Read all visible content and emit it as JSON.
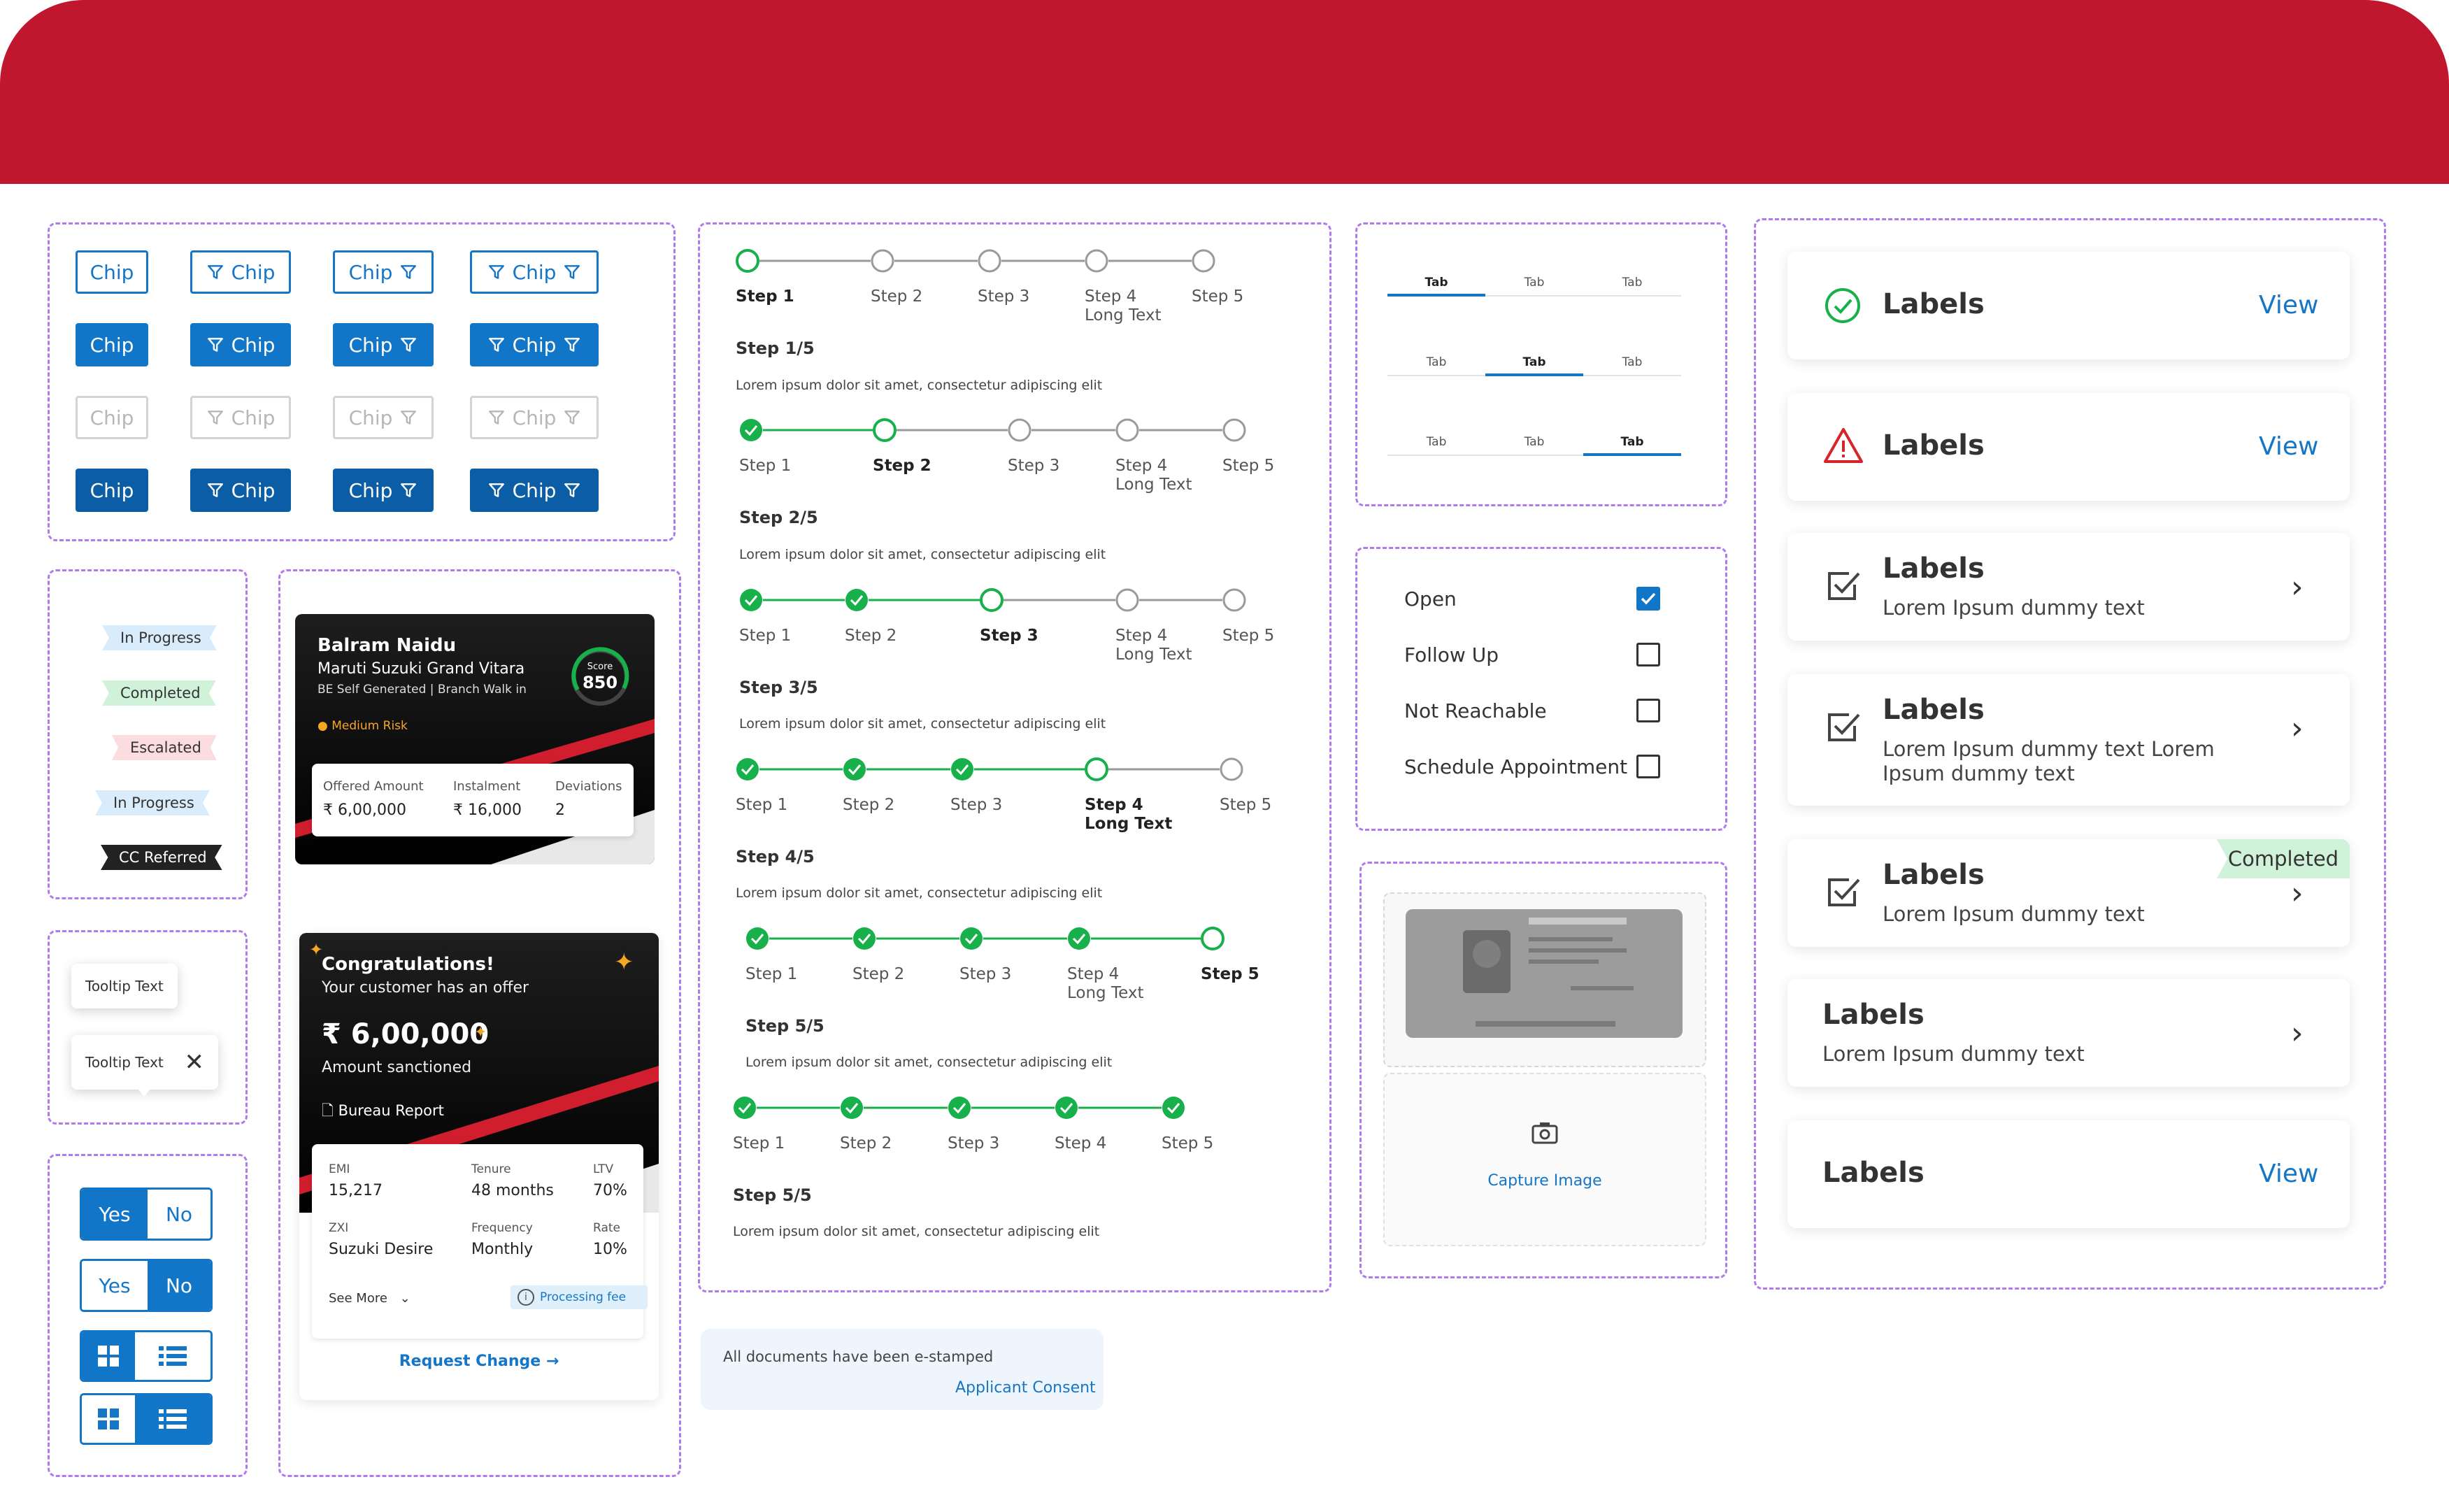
{
  "chips": {
    "label": "Chip"
  },
  "status_tags": [
    "In Progress",
    "Completed",
    "Escalated",
    "In Progress",
    "CC Referred"
  ],
  "tooltips": [
    "Tooltip Text",
    "Tooltip Text"
  ],
  "toggles": {
    "yes": "Yes",
    "no": "No"
  },
  "lead_card": {
    "name": "Balram Naidu",
    "vehicle": "Maruti Suzuki Grand Vitara",
    "meta": "BE Self Generated | Branch Walk in",
    "risk": "Medium Risk",
    "score_label": "Score",
    "score": "850",
    "stats": [
      {
        "label": "Offered Amount",
        "value": "₹ 6,00,000"
      },
      {
        "label": "Instalment",
        "value": "₹ 16,000"
      },
      {
        "label": "Deviations",
        "value": "2"
      }
    ]
  },
  "offer_card": {
    "title": "Congratulations!",
    "subtitle": "Your customer has an offer",
    "amount": "₹ 6,00,000",
    "amount_label": "Amount sanctioned",
    "report": "Bureau Report",
    "details": [
      {
        "label": "EMI",
        "value": "15,217"
      },
      {
        "label": "Tenure",
        "value": "48 months"
      },
      {
        "label": "LTV",
        "value": "70%"
      },
      {
        "label": "ZXI",
        "value": "Suzuki Desire"
      },
      {
        "label": "Frequency",
        "value": "Monthly"
      },
      {
        "label": "Rate",
        "value": "10%"
      }
    ],
    "see_more": "See More",
    "fee": "Processing fee",
    "cta": "Request Change"
  },
  "steppers": [
    {
      "labels": [
        "Step 1",
        "Step 2",
        "Step 3",
        "Step 4",
        "Step 5"
      ],
      "long": "Long Text",
      "title": "Step 1/5",
      "desc": "Lorem ipsum dolor sit amet, consectetur adipiscing elit"
    },
    {
      "labels": [
        "Step 1",
        "Step 2",
        "Step 3",
        "Step 4",
        "Step 5"
      ],
      "long": "Long Text",
      "title": "Step 2/5",
      "desc": "Lorem ipsum dolor sit amet, consectetur adipiscing elit"
    },
    {
      "labels": [
        "Step 1",
        "Step 2",
        "Step 3",
        "Step 4",
        "Step 5"
      ],
      "long": "Long Text",
      "title": "Step 3/5",
      "desc": "Lorem ipsum dolor sit amet, consectetur adipiscing elit"
    },
    {
      "labels": [
        "Step 1",
        "Step 2",
        "Step 3",
        "Step 4",
        "Step 5"
      ],
      "long": "Long Text",
      "title": "Step 4/5",
      "desc": "Lorem ipsum dolor sit amet, consectetur adipiscing elit"
    },
    {
      "labels": [
        "Step 1",
        "Step 2",
        "Step 3",
        "Step 4",
        "Step 5"
      ],
      "long": "Long Text",
      "title": "Step 5/5",
      "desc": "Lorem ipsum dolor sit amet, consectetur adipiscing elit"
    },
    {
      "labels": [
        "Step 1",
        "Step 2",
        "Step 3",
        "Step 4",
        "Step 5"
      ],
      "long": "",
      "title": "Step 5/5",
      "desc": "Lorem ipsum dolor sit amet, consectetur adipiscing elit"
    }
  ],
  "consent": {
    "text": "All documents have been e-stamped",
    "link": "Applicant Consent"
  },
  "tabs": {
    "label": "Tab"
  },
  "checklist": [
    {
      "label": "Open",
      "checked": true
    },
    {
      "label": "Follow Up",
      "checked": false
    },
    {
      "label": "Not Reachable",
      "checked": false
    },
    {
      "label": "Schedule Appointment",
      "checked": false
    }
  ],
  "capture": {
    "label": "Capture Image"
  },
  "label_cards": {
    "title": "Labels",
    "view": "View",
    "sub_short": "Lorem Ipsum dummy text",
    "sub_long": "Lorem Ipsum dummy text Lorem Ipsum dummy text",
    "completed": "Completed"
  },
  "colors": {
    "brand_red": "#c0172f",
    "primary_blue": "#1576c8",
    "success_green": "#17b04b",
    "error_red": "#d8232a"
  }
}
